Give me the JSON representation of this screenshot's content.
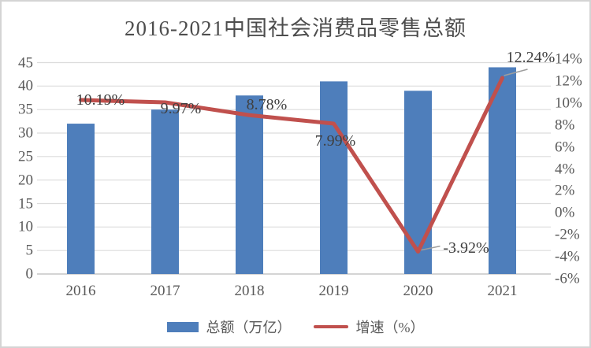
{
  "chart_data": {
    "type": "bar+line",
    "title": "2016-2021中国社会消费品零售总额",
    "categories": [
      "2016",
      "2017",
      "2018",
      "2019",
      "2020",
      "2021"
    ],
    "series": [
      {
        "name": "总额（万亿）",
        "type": "bar",
        "axis": "left",
        "values": [
          32,
          35,
          38,
          41,
          39,
          44
        ],
        "color": "#4E7EBB"
      },
      {
        "name": "增速（%）",
        "type": "line",
        "axis": "right",
        "values": [
          10.19,
          9.97,
          8.78,
          7.99,
          -3.92,
          12.24
        ],
        "labels": [
          "10.19%",
          "9.97%",
          "8.78%",
          "7.99%",
          "-3.92%",
          "12.24%"
        ],
        "color": "#C0504D"
      }
    ],
    "left_axis": {
      "min": 0,
      "max": 45,
      "tick_values": [
        45,
        40,
        35,
        30,
        25,
        20,
        15,
        10,
        5,
        0
      ],
      "tick_labels": [
        "45",
        "40",
        "35",
        "30",
        "25",
        "20",
        "15",
        "10",
        "5",
        "0"
      ]
    },
    "right_axis": {
      "min": -6,
      "max": 14,
      "tick_values": [
        14,
        12,
        10,
        8,
        6,
        4,
        2,
        0,
        -2,
        -4,
        -6
      ],
      "tick_labels": [
        "14%",
        "12%",
        "10%",
        "8%",
        "6%",
        "4%",
        "2%",
        "0%",
        "-2%",
        "-4%",
        "-6%"
      ]
    },
    "grid": "horizontal",
    "legend_position": "bottom",
    "colors": {
      "bar": "#4E7EBB",
      "line": "#C0504D",
      "grid": "#DCDCDC",
      "axis_line": "#C6C6C6",
      "leader": "#9E9E9E",
      "tick_text": "#595959",
      "data_label_text": "#404040",
      "title_text": "#4D4D4D",
      "border": "#D4D4D4",
      "background": "#FFFFFF"
    }
  }
}
